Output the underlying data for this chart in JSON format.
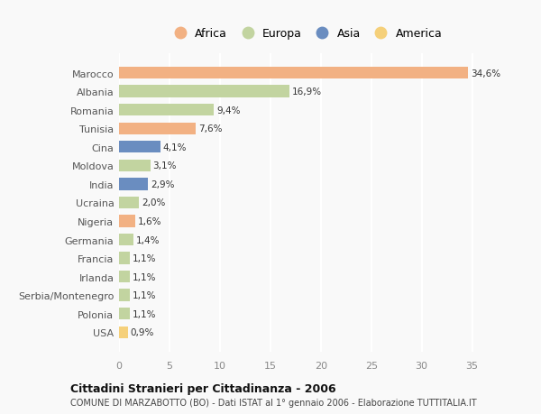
{
  "categories": [
    "Marocco",
    "Albania",
    "Romania",
    "Tunisia",
    "Cina",
    "Moldova",
    "India",
    "Ucraina",
    "Nigeria",
    "Germania",
    "Francia",
    "Irlanda",
    "Serbia/Montenegro",
    "Polonia",
    "USA"
  ],
  "values": [
    34.6,
    16.9,
    9.4,
    7.6,
    4.1,
    3.1,
    2.9,
    2.0,
    1.6,
    1.4,
    1.1,
    1.1,
    1.1,
    1.1,
    0.9
  ],
  "labels": [
    "34,6%",
    "16,9%",
    "9,4%",
    "7,6%",
    "4,1%",
    "3,1%",
    "2,9%",
    "2,0%",
    "1,6%",
    "1,4%",
    "1,1%",
    "1,1%",
    "1,1%",
    "1,1%",
    "0,9%"
  ],
  "continents": [
    "Africa",
    "Europa",
    "Europa",
    "Africa",
    "Asia",
    "Europa",
    "Asia",
    "Europa",
    "Africa",
    "Europa",
    "Europa",
    "Europa",
    "Europa",
    "Europa",
    "America"
  ],
  "colors": {
    "Africa": "#F2B183",
    "Europa": "#C2D4A0",
    "Asia": "#6A8DC0",
    "America": "#F5D07A"
  },
  "legend_labels": [
    "Africa",
    "Europa",
    "Asia",
    "America"
  ],
  "legend_colors": [
    "#F2B183",
    "#C2D4A0",
    "#6A8DC0",
    "#F5D07A"
  ],
  "xlim": [
    0,
    37
  ],
  "xticks": [
    0,
    5,
    10,
    15,
    20,
    25,
    30,
    35
  ],
  "title": "Cittadini Stranieri per Cittadinanza - 2006",
  "subtitle": "COMUNE DI MARZABOTTO (BO) - Dati ISTAT al 1° gennaio 2006 - Elaborazione TUTTITALIA.IT",
  "background_color": "#f9f9f9",
  "bar_height": 0.65,
  "figsize": [
    6.0,
    4.6
  ],
  "dpi": 100
}
